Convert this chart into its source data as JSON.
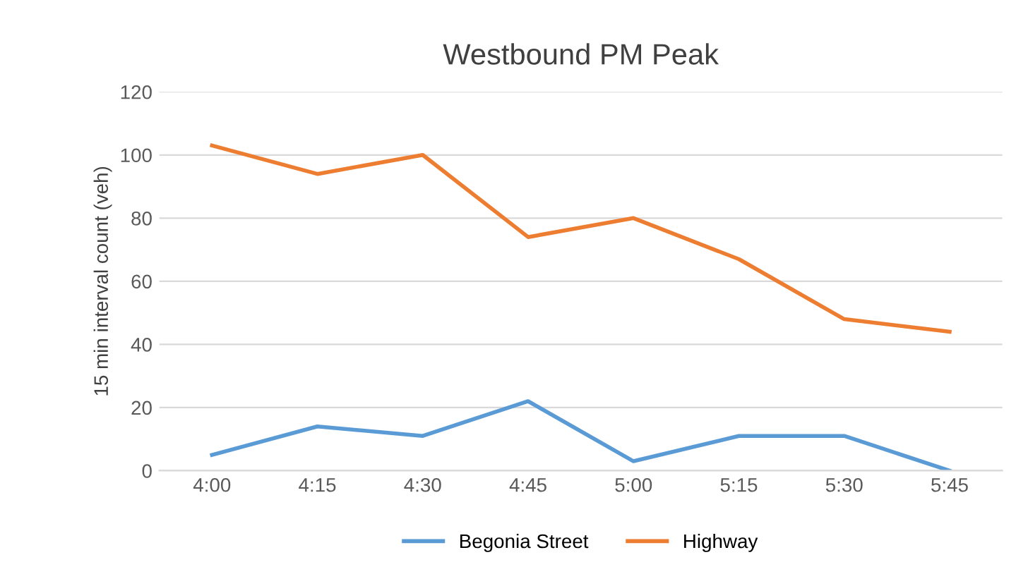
{
  "chart_data": {
    "type": "line",
    "title": "Westbound PM Peak",
    "ylabel": "15 min interval count (veh)",
    "categories": [
      "4:00",
      "4:15",
      "4:30",
      "4:45",
      "5:00",
      "5:15",
      "5:30",
      "5:45"
    ],
    "series": [
      {
        "name": "Begonia Street",
        "color": "#5b9bd5",
        "values": [
          5,
          14,
          11,
          22,
          3,
          11,
          11,
          0
        ]
      },
      {
        "name": "Highway",
        "color": "#ed7d31",
        "values": [
          103,
          94,
          100,
          74,
          80,
          67,
          48,
          44
        ]
      }
    ],
    "ylim": [
      0,
      120
    ],
    "yticks": [
      0,
      20,
      40,
      60,
      80,
      100,
      120
    ],
    "grid": "y",
    "legend": "bottom",
    "marker": "none",
    "line_style": "solid"
  }
}
